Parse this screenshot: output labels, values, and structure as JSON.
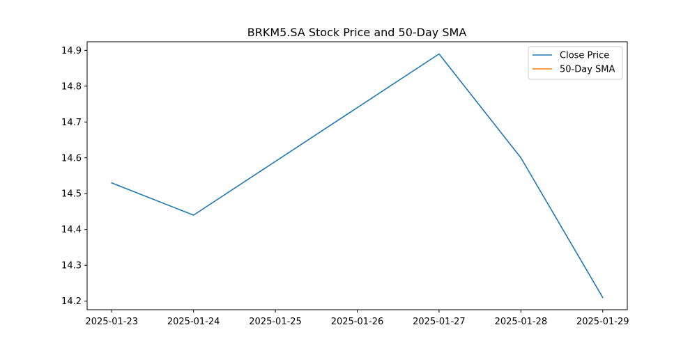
{
  "chart_data": {
    "type": "line",
    "title": "BRKM5.SA Stock Price and 50-Day SMA",
    "xlabel": "",
    "ylabel": "",
    "x": [
      "2025-01-23",
      "2025-01-24",
      "2025-01-25",
      "2025-01-26",
      "2025-01-27",
      "2025-01-28",
      "2025-01-29"
    ],
    "xticks": [
      "2025-01-23",
      "2025-01-24",
      "2025-01-25",
      "2025-01-26",
      "2025-01-27",
      "2025-01-28",
      "2025-01-29"
    ],
    "yticks": [
      14.2,
      14.3,
      14.4,
      14.5,
      14.6,
      14.7,
      14.8,
      14.9
    ],
    "ylim": [
      14.176,
      14.924
    ],
    "xlim": [
      "2025-01-22T16:48",
      "2025-01-29T07:12"
    ],
    "grid": false,
    "legend_position": "top-right",
    "series": [
      {
        "name": "Close Price",
        "color": "#1f77b4",
        "points": [
          {
            "x": "2025-01-23",
            "y": 14.53
          },
          {
            "x": "2025-01-24",
            "y": 14.44
          },
          {
            "x": "2025-01-27",
            "y": 14.89
          },
          {
            "x": "2025-01-28",
            "y": 14.6
          },
          {
            "x": "2025-01-29",
            "y": 14.21
          }
        ]
      },
      {
        "name": "50-Day SMA",
        "color": "#ff7f0e",
        "points": []
      }
    ]
  }
}
